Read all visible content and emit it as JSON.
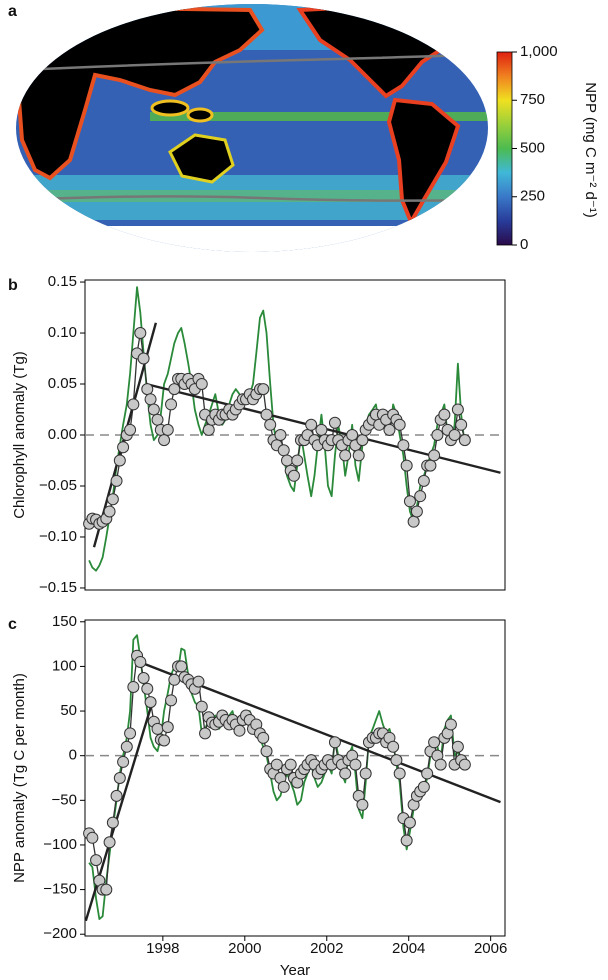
{
  "chart_data": [
    {
      "type": "map",
      "label": "a",
      "colorbar_label": "NPP (mg C m⁻² d⁻¹)",
      "clim": [
        0,
        1000
      ],
      "cticks": [
        {
          "value": 1000,
          "label": "1,000"
        },
        750,
        500,
        250,
        0
      ],
      "colormap": [
        "#2a0a4a",
        "#283c9a",
        "#3a78c8",
        "#40b8d8",
        "#4cbb50",
        "#9ad03a",
        "#f0e020",
        "#f08020",
        "#e02010"
      ]
    },
    {
      "type": "line",
      "label": "b",
      "ylabel": "Chlorophyll anomaly (Tg)",
      "x": [
        1996.2,
        1996.28,
        1996.37,
        1996.45,
        1996.53,
        1996.62,
        1996.7,
        1996.78,
        1996.87,
        1996.95,
        1997.03,
        1997.12,
        1997.2,
        1997.28,
        1997.37,
        1997.45,
        1997.53,
        1997.62,
        1997.7,
        1997.78,
        1997.87,
        1997.95,
        1998.03,
        1998.12,
        1998.2,
        1998.28,
        1998.37,
        1998.45,
        1998.53,
        1998.62,
        1998.7,
        1998.78,
        1998.87,
        1998.95,
        1999.03,
        1999.12,
        1999.2,
        1999.28,
        1999.37,
        1999.45,
        1999.53,
        1999.62,
        1999.7,
        1999.78,
        1999.87,
        1999.95,
        2000.03,
        2000.12,
        2000.2,
        2000.28,
        2000.37,
        2000.45,
        2000.53,
        2000.62,
        2000.7,
        2000.78,
        2000.87,
        2000.95,
        2001.03,
        2001.12,
        2001.2,
        2001.28,
        2001.37,
        2001.45,
        2001.53,
        2001.62,
        2001.7,
        2001.78,
        2001.87,
        2001.95,
        2002.03,
        2002.12,
        2002.2,
        2002.28,
        2002.37,
        2002.45,
        2002.53,
        2002.62,
        2002.7,
        2002.78,
        2002.87,
        2002.95,
        2003.03,
        2003.12,
        2003.2,
        2003.28,
        2003.37,
        2003.45,
        2003.53,
        2003.62,
        2003.7,
        2003.78,
        2003.87,
        2003.95,
        2004.03,
        2004.12,
        2004.2,
        2004.28,
        2004.37,
        2004.45,
        2004.53,
        2004.62,
        2004.7,
        2004.78,
        2004.87,
        2004.95,
        2005.03,
        2005.12,
        2005.2,
        2005.28,
        2005.37
      ],
      "series": [
        {
          "color": "#2a8a3a",
          "values": [
            -0.123,
            -0.13,
            -0.133,
            -0.128,
            -0.12,
            -0.1,
            -0.08,
            -0.06,
            -0.03,
            -0.01,
            0.01,
            0.03,
            0.06,
            0.1,
            0.145,
            0.12,
            0.08,
            0.04,
            0.01,
            -0.005,
            0.0,
            0.02,
            0.05,
            0.06,
            0.075,
            0.09,
            0.1,
            0.105,
            0.09,
            0.07,
            0.05,
            0.025,
            0.01,
            0.0,
            0.01,
            0.02,
            0.03,
            0.04,
            0.02,
            0.01,
            0.015,
            0.03,
            0.04,
            0.045,
            0.04,
            0.03,
            0.035,
            0.04,
            0.05,
            0.08,
            0.115,
            0.122,
            0.1,
            0.05,
            0.01,
            -0.01,
            0.0,
            -0.02,
            -0.04,
            -0.05,
            -0.055,
            -0.03,
            0.0,
            -0.02,
            -0.04,
            -0.06,
            -0.04,
            -0.01,
            0.02,
            -0.01,
            -0.05,
            -0.06,
            -0.02,
            0.01,
            -0.01,
            -0.04,
            -0.02,
            0.01,
            -0.03,
            -0.045,
            -0.01,
            0.01,
            0.02,
            0.025,
            0.03,
            0.01,
            0.025,
            0.02,
            0.0,
            0.03,
            0.02,
            0.0,
            -0.02,
            -0.05,
            -0.075,
            -0.085,
            -0.07,
            -0.05,
            -0.04,
            -0.03,
            -0.02,
            -0.01,
            0.01,
            0.02,
            0.03,
            0.0,
            -0.01,
            0.01,
            0.07,
            0.02,
            -0.01
          ]
        },
        {
          "color": "#333333",
          "marker_color": "#c8c8c8",
          "markers": true,
          "values": [
            -0.087,
            -0.082,
            -0.083,
            -0.087,
            -0.085,
            -0.082,
            -0.075,
            -0.063,
            -0.045,
            -0.025,
            -0.012,
            0.0,
            0.005,
            0.03,
            0.08,
            0.1,
            0.075,
            0.045,
            0.035,
            0.025,
            0.015,
            0.005,
            -0.005,
            0.005,
            0.03,
            0.045,
            0.055,
            0.055,
            0.05,
            0.055,
            0.05,
            0.045,
            0.055,
            0.05,
            0.02,
            0.005,
            0.015,
            0.02,
            0.015,
            0.02,
            0.02,
            0.025,
            0.02,
            0.025,
            0.03,
            0.035,
            0.035,
            0.04,
            0.035,
            0.04,
            0.045,
            0.045,
            0.02,
            0.01,
            -0.005,
            -0.01,
            0.0,
            -0.015,
            -0.025,
            -0.035,
            -0.04,
            -0.025,
            -0.005,
            -0.005,
            0.0,
            0.01,
            -0.005,
            -0.01,
            0.005,
            -0.005,
            -0.01,
            -0.005,
            0.012,
            -0.005,
            -0.01,
            -0.02,
            -0.005,
            0.0,
            -0.01,
            -0.02,
            -0.005,
            0.005,
            0.01,
            0.015,
            0.02,
            0.01,
            0.02,
            0.015,
            0.005,
            0.02,
            0.015,
            0.01,
            -0.01,
            -0.03,
            -0.065,
            -0.085,
            -0.075,
            -0.06,
            -0.045,
            -0.03,
            -0.03,
            -0.02,
            0.0,
            0.015,
            0.02,
            0.005,
            -0.005,
            0.0,
            0.025,
            0.01,
            -0.005
          ]
        }
      ],
      "trends": [
        {
          "color": "#222222",
          "x": [
            1996.32,
            1997.83
          ],
          "values": [
            -0.11,
            0.11
          ]
        },
        {
          "color": "#222222",
          "x": [
            1997.59,
            2006.24
          ],
          "values": [
            0.05,
            -0.037
          ]
        }
      ],
      "reference_line": 0,
      "xlim": [
        1996.1,
        2006.35
      ],
      "ylim": [
        -0.152,
        0.152
      ],
      "yticks": [
        0.15,
        {
          "value": 0.1,
          "label": "0.10"
        },
        0.05,
        {
          "value": 0,
          "label": "0.00"
        },
        {
          "value": -0.05,
          "label": "−0.05"
        },
        {
          "value": -0.1,
          "label": "−0.10"
        },
        {
          "value": -0.15,
          "label": "−0.15"
        }
      ]
    },
    {
      "type": "line",
      "label": "c",
      "ylabel": "NPP anomaly (Tg C per month)",
      "xlabel": "Year",
      "x": [
        1996.2,
        1996.28,
        1996.37,
        1996.45,
        1996.53,
        1996.62,
        1996.7,
        1996.78,
        1996.87,
        1996.95,
        1997.03,
        1997.12,
        1997.2,
        1997.28,
        1997.37,
        1997.45,
        1997.53,
        1997.62,
        1997.7,
        1997.78,
        1997.87,
        1997.95,
        1998.03,
        1998.12,
        1998.2,
        1998.28,
        1998.37,
        1998.45,
        1998.53,
        1998.62,
        1998.7,
        1998.78,
        1998.87,
        1998.95,
        1999.03,
        1999.12,
        1999.2,
        1999.28,
        1999.37,
        1999.45,
        1999.53,
        1999.62,
        1999.7,
        1999.78,
        1999.87,
        1999.95,
        2000.03,
        2000.12,
        2000.2,
        2000.28,
        2000.37,
        2000.45,
        2000.53,
        2000.62,
        2000.7,
        2000.78,
        2000.87,
        2000.95,
        2001.03,
        2001.12,
        2001.2,
        2001.28,
        2001.37,
        2001.45,
        2001.53,
        2001.62,
        2001.7,
        2001.78,
        2001.87,
        2001.95,
        2002.03,
        2002.12,
        2002.2,
        2002.28,
        2002.37,
        2002.45,
        2002.53,
        2002.62,
        2002.7,
        2002.78,
        2002.87,
        2002.95,
        2003.03,
        2003.12,
        2003.2,
        2003.28,
        2003.37,
        2003.45,
        2003.53,
        2003.62,
        2003.7,
        2003.78,
        2003.87,
        2003.95,
        2004.03,
        2004.12,
        2004.2,
        2004.28,
        2004.37,
        2004.45,
        2004.53,
        2004.62,
        2004.7,
        2004.78,
        2004.87,
        2004.95,
        2005.03,
        2005.12,
        2005.2,
        2005.28,
        2005.37
      ],
      "series": [
        {
          "color": "#2a8a3a",
          "values": [
            -120,
            -125,
            -160,
            -183,
            -180,
            -140,
            -110,
            -80,
            -50,
            -20,
            0,
            20,
            50,
            130,
            135,
            110,
            80,
            50,
            20,
            10,
            5,
            20,
            50,
            70,
            90,
            100,
            95,
            120,
            118,
            90,
            70,
            60,
            55,
            25,
            30,
            40,
            40,
            45,
            30,
            35,
            40,
            45,
            50,
            35,
            25,
            40,
            45,
            50,
            40,
            35,
            20,
            10,
            0,
            -20,
            -40,
            -50,
            -45,
            -30,
            -20,
            -30,
            -40,
            -55,
            -50,
            -30,
            -20,
            -10,
            -25,
            -35,
            -30,
            -20,
            -10,
            -20,
            20,
            0,
            -20,
            -30,
            0,
            10,
            -20,
            -60,
            -70,
            -30,
            20,
            30,
            40,
            50,
            35,
            25,
            30,
            15,
            -10,
            -30,
            -80,
            -105,
            -85,
            -60,
            -50,
            -45,
            -40,
            -25,
            0,
            20,
            10,
            -5,
            30,
            40,
            45,
            0,
            5,
            -10,
            -15
          ]
        },
        {
          "color": "#333333",
          "marker_color": "#c8c8c8",
          "markers": true,
          "values": [
            -87,
            -92,
            -117,
            -140,
            -150,
            -150,
            -97,
            -75,
            -45,
            -25,
            -7,
            10,
            25,
            77,
            112,
            105,
            87,
            75,
            60,
            38,
            30,
            18,
            17,
            32,
            62,
            85,
            100,
            100,
            88,
            85,
            80,
            75,
            83,
            55,
            25,
            43,
            37,
            35,
            38,
            45,
            40,
            35,
            40,
            35,
            28,
            40,
            45,
            40,
            30,
            35,
            25,
            20,
            5,
            -15,
            -20,
            -10,
            -25,
            -35,
            -15,
            -10,
            -25,
            -30,
            -20,
            -15,
            -10,
            -5,
            -10,
            -20,
            -15,
            -10,
            -5,
            -10,
            15,
            -5,
            -10,
            -20,
            -5,
            0,
            -10,
            -45,
            -55,
            -20,
            15,
            20,
            20,
            25,
            25,
            15,
            20,
            10,
            -5,
            -20,
            -70,
            -95,
            -75,
            -55,
            -45,
            -40,
            -35,
            -20,
            5,
            15,
            0,
            -10,
            20,
            25,
            35,
            -10,
            10,
            -5,
            -10
          ]
        }
      ],
      "trends": [
        {
          "color": "#222222",
          "x": [
            1996.12,
            1997.71
          ],
          "values": [
            -185,
            55
          ]
        },
        {
          "color": "#222222",
          "x": [
            1997.54,
            2006.24
          ],
          "values": [
            103,
            -52
          ]
        }
      ],
      "reference_line": 0,
      "xlim": [
        1996.1,
        2006.35
      ],
      "ylim": [
        -202,
        152
      ],
      "xticks": [
        1998,
        2000,
        2002,
        2004,
        2006
      ],
      "yticks": [
        150,
        100,
        50,
        0,
        {
          "value": -50,
          "label": "−50"
        },
        {
          "value": -100,
          "label": "−100"
        },
        {
          "value": -150,
          "label": "−150"
        },
        {
          "value": -200,
          "label": "−200"
        }
      ]
    }
  ]
}
